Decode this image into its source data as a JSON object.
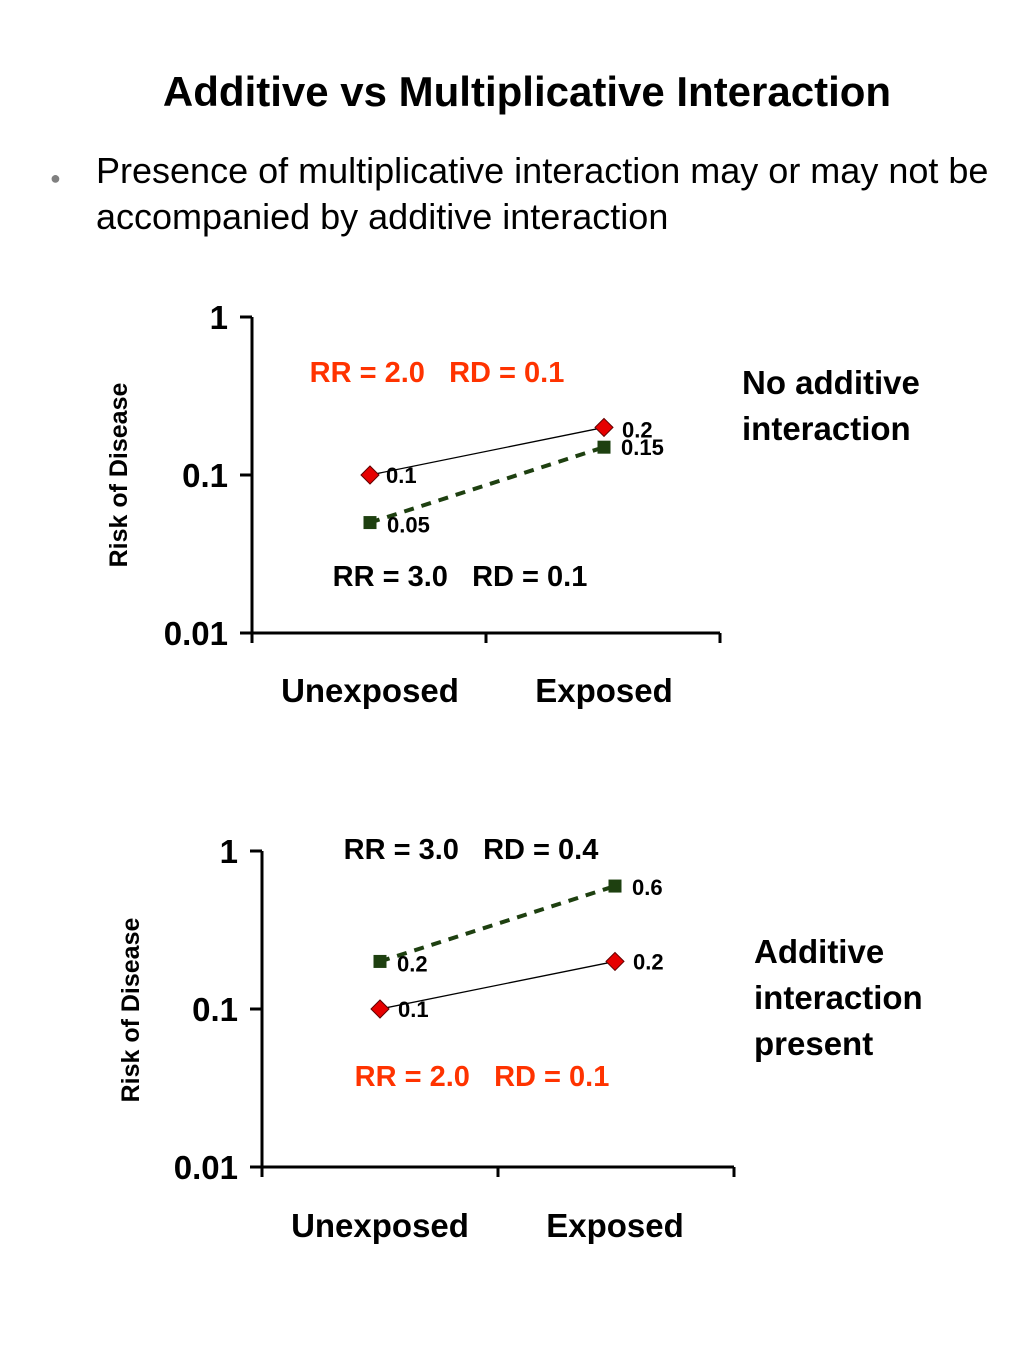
{
  "slide": {
    "title": "Additive vs Multiplicative Interaction",
    "bullet": "Presence of multiplicative interaction may or may not be accompanied by additive interaction"
  },
  "colors": {
    "red_series": "#e60000",
    "green_series": "#1e4010",
    "red_text": "#ff3300",
    "axis": "#000000"
  },
  "chart_data": [
    {
      "type": "line",
      "y_scale": "log",
      "ylim": [
        0.01,
        1
      ],
      "yticks": [
        "0.01",
        "0.1",
        "1"
      ],
      "ylabel": "Risk of Disease",
      "categories": [
        "Unexposed",
        "Exposed"
      ],
      "series": [
        {
          "values": [
            0.1,
            0.2
          ],
          "labels": [
            "0.1",
            "0.2"
          ],
          "marker": "diamond",
          "line": "solid",
          "color": "#e60000"
        },
        {
          "values": [
            0.05,
            0.15
          ],
          "labels": [
            "0.05",
            "0.15"
          ],
          "marker": "square",
          "line": "dashed",
          "color": "#1e4010"
        }
      ],
      "annotations": [
        {
          "text": "RR = 2.0   RD = 0.1",
          "color": "#ff3300"
        },
        {
          "text": "RR = 3.0   RD = 0.1",
          "color": "#000000"
        }
      ],
      "note": "No additive\ninteraction"
    },
    {
      "type": "line",
      "y_scale": "log",
      "ylim": [
        0.01,
        1
      ],
      "yticks": [
        "0.01",
        "0.1",
        "1"
      ],
      "ylabel": "Risk of Disease",
      "categories": [
        "Unexposed",
        "Exposed"
      ],
      "series": [
        {
          "values": [
            0.1,
            0.2
          ],
          "labels": [
            "0.1",
            "0.2"
          ],
          "marker": "diamond",
          "line": "solid",
          "color": "#e60000"
        },
        {
          "values": [
            0.2,
            0.6
          ],
          "labels": [
            "0.2",
            "0.6"
          ],
          "marker": "square",
          "line": "dashed",
          "color": "#1e4010"
        }
      ],
      "annotations": [
        {
          "text": "RR = 3.0   RD = 0.4",
          "color": "#000000"
        },
        {
          "text": "RR = 2.0   RD = 0.1",
          "color": "#ff3300"
        }
      ],
      "note": "Additive\ninteraction\npresent"
    }
  ]
}
